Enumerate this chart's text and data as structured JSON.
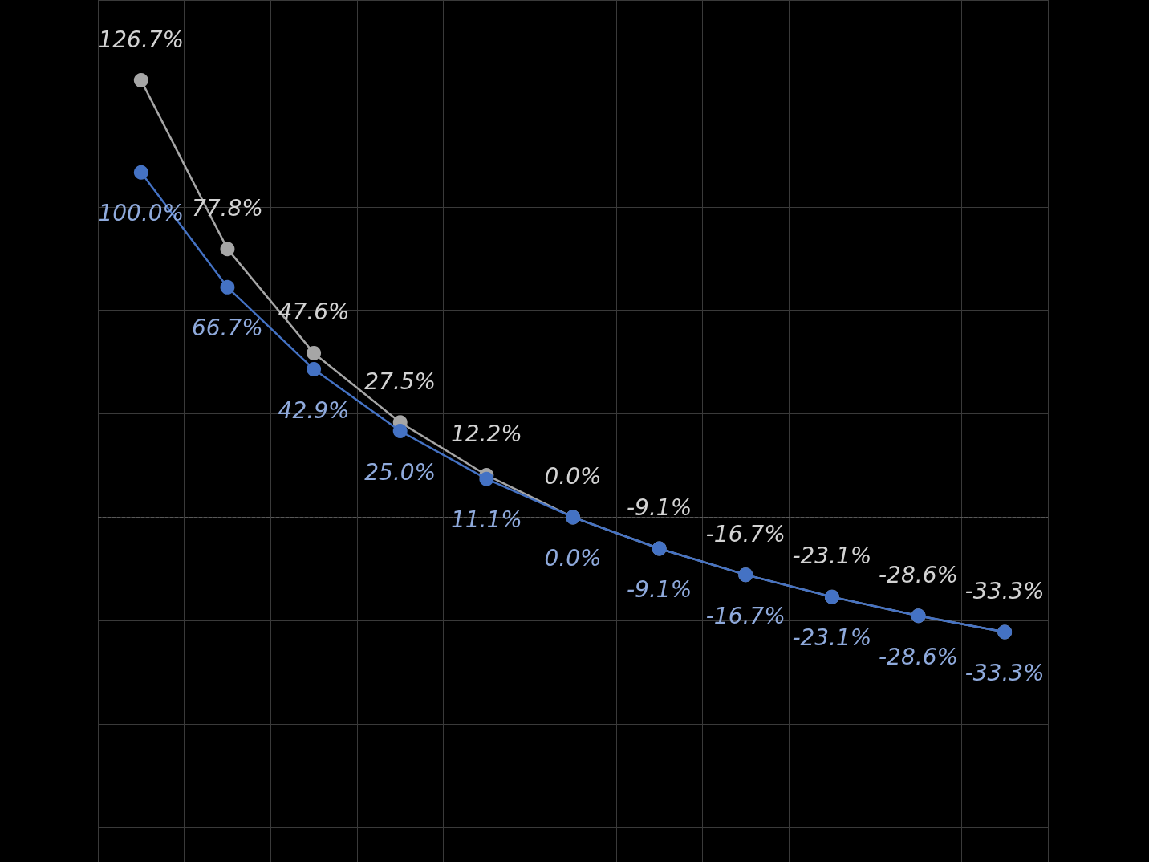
{
  "chart_data": {
    "type": "line",
    "categories": [
      null,
      null,
      null,
      null,
      null,
      null,
      null,
      null,
      null,
      null,
      null
    ],
    "series": [
      {
        "color": "#4472c4",
        "values": [
          100.0,
          66.7,
          42.9,
          25.0,
          11.1,
          0.0,
          -9.1,
          -16.7,
          -23.1,
          -28.6,
          -33.3
        ],
        "value_labels": [
          "100.0%",
          "66.7%",
          "42.9%",
          "25.0%",
          "11.1%",
          "0.0%",
          "-9.1%",
          "-16.7%",
          "-23.1%",
          "-28.6%",
          "-33.3%"
        ]
      },
      {
        "color": "#a6a6a6",
        "values": [
          126.7,
          77.8,
          47.6,
          27.5,
          12.2,
          0.0,
          -9.1,
          -16.7,
          -23.1,
          -28.6,
          -33.3
        ],
        "value_labels": [
          "126.7%",
          "77.8%",
          "47.6%",
          "27.5%",
          "12.2%",
          "0.0%",
          "-9.1%",
          "-16.7%",
          "-23.1%",
          "-28.6%",
          "-33.3%"
        ]
      }
    ],
    "ylim": [
      -100,
      150
    ],
    "ref_lines": [
      {
        "axis": "y",
        "value": 0,
        "label": null,
        "line_style": "dashed",
        "color": "#595959"
      }
    ],
    "grid": true,
    "tick_labels": false,
    "marker": "circle",
    "line_style": "solid"
  }
}
